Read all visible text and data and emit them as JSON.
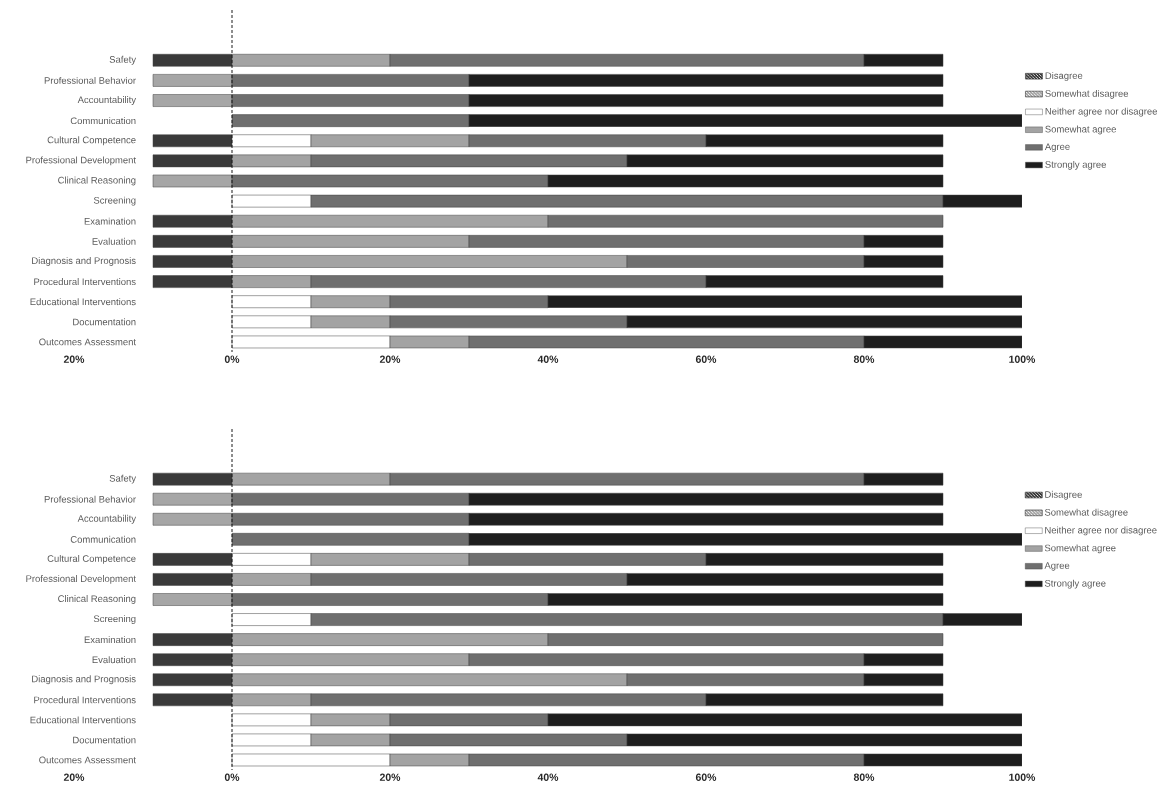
{
  "chart_data": [
    {
      "type": "bar",
      "orientation": "horizontal",
      "stacked": true,
      "legend": "right",
      "xlim": [
        -20,
        100
      ],
      "xticks": [
        {
          "value": -20,
          "label": "20%"
        },
        {
          "value": 0,
          "label": "0%"
        },
        {
          "value": 20,
          "label": "20%"
        },
        {
          "value": 40,
          "label": "40%"
        },
        {
          "value": 60,
          "label": "60%"
        },
        {
          "value": 80,
          "label": "80%"
        },
        {
          "value": 100,
          "label": "100%"
        }
      ],
      "categories": [
        "Safety",
        "Professional Behavior",
        "Accountability",
        "Communication",
        "Cultural Competence",
        "Professional Development",
        "Clinical Reasoning",
        "Screening",
        "Examination",
        "Evaluation",
        "Diagnosis and Prognosis",
        "Procedural Interventions",
        "Educational Interventions",
        "Documentation",
        "Outcomes Assessment"
      ],
      "ref_lines": [
        {
          "axis": "x",
          "value": 0,
          "line_style": "dashed",
          "color": "#1a1a1a"
        }
      ],
      "series": [
        {
          "name": "Disagree",
          "color": "#3a3a3a",
          "values": [
            -10,
            null,
            null,
            null,
            -10,
            -10,
            null,
            null,
            -10,
            -10,
            -10,
            -10,
            null,
            null,
            null
          ]
        },
        {
          "name": "Somewhat disagree",
          "color": "#a6a6a6",
          "values": [
            null,
            -10,
            -10,
            null,
            null,
            null,
            -10,
            null,
            null,
            null,
            null,
            null,
            null,
            null,
            null
          ]
        },
        {
          "name": "Neither agree nor disagree",
          "color": "#ffffff",
          "values": [
            null,
            null,
            null,
            null,
            10,
            null,
            null,
            10,
            null,
            null,
            null,
            null,
            10,
            10,
            20
          ]
        },
        {
          "name": "Somewhat agree",
          "color": "#a3a3a3",
          "values": [
            20,
            null,
            null,
            null,
            20,
            10,
            null,
            null,
            40,
            30,
            50,
            10,
            10,
            10,
            10
          ]
        },
        {
          "name": "Agree",
          "color": "#6f6f6f",
          "values": [
            60,
            30,
            30,
            30,
            30,
            40,
            40,
            80,
            50,
            50,
            30,
            50,
            20,
            30,
            50
          ]
        },
        {
          "name": "Strongly agree",
          "color": "#1e1e1e",
          "values": [
            10,
            60,
            60,
            70,
            30,
            40,
            50,
            10,
            null,
            10,
            10,
            30,
            60,
            50,
            20
          ]
        }
      ]
    },
    {
      "type": "bar",
      "orientation": "horizontal",
      "stacked": true,
      "legend": "right",
      "xlim": [
        -20,
        100
      ],
      "xticks": [
        {
          "value": -20,
          "label": "20%"
        },
        {
          "value": 0,
          "label": "0%"
        },
        {
          "value": 20,
          "label": "20%"
        },
        {
          "value": 40,
          "label": "40%"
        },
        {
          "value": 60,
          "label": "60%"
        },
        {
          "value": 80,
          "label": "80%"
        },
        {
          "value": 100,
          "label": "100%"
        }
      ],
      "categories": [
        "Safety",
        "Professional Behavior",
        "Accountability",
        "Communication",
        "Cultural Competence",
        "Professional Development",
        "Clinical Reasoning",
        "Screening",
        "Examination",
        "Evaluation",
        "Diagnosis and Prognosis",
        "Procedural Interventions",
        "Educational Interventions",
        "Documentation",
        "Outcomes Assessment"
      ],
      "ref_lines": [
        {
          "axis": "x",
          "value": 0,
          "line_style": "dashed",
          "color": "#1a1a1a"
        }
      ],
      "series": [
        {
          "name": "Disagree",
          "color": "#3a3a3a",
          "values": [
            -10,
            null,
            null,
            null,
            -10,
            -10,
            null,
            null,
            -10,
            -10,
            -10,
            -10,
            null,
            null,
            null
          ]
        },
        {
          "name": "Somewhat disagree",
          "color": "#a6a6a6",
          "values": [
            null,
            -10,
            -10,
            null,
            null,
            null,
            -10,
            null,
            null,
            null,
            null,
            null,
            null,
            null,
            null
          ]
        },
        {
          "name": "Neither agree nor disagree",
          "color": "#ffffff",
          "values": [
            null,
            null,
            null,
            null,
            10,
            null,
            null,
            10,
            null,
            null,
            null,
            null,
            10,
            10,
            20
          ]
        },
        {
          "name": "Somewhat agree",
          "color": "#a3a3a3",
          "values": [
            20,
            null,
            null,
            null,
            20,
            10,
            null,
            null,
            40,
            30,
            50,
            10,
            10,
            10,
            10
          ]
        },
        {
          "name": "Agree",
          "color": "#6f6f6f",
          "values": [
            60,
            30,
            30,
            30,
            30,
            40,
            40,
            80,
            50,
            50,
            30,
            50,
            20,
            30,
            50
          ]
        },
        {
          "name": "Strongly agree",
          "color": "#1e1e1e",
          "values": [
            10,
            60,
            60,
            70,
            30,
            40,
            50,
            10,
            null,
            10,
            10,
            30,
            60,
            50,
            20
          ]
        }
      ]
    }
  ]
}
